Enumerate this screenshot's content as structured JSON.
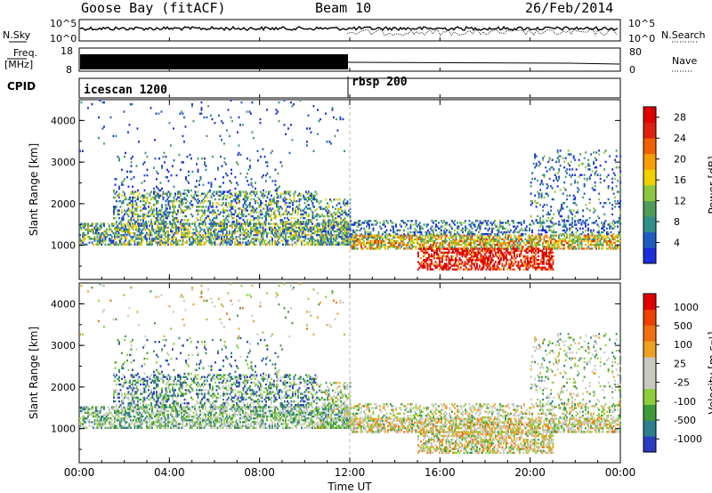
{
  "header": {
    "station": "Goose Bay (fitACF)",
    "beam": "Beam 10",
    "date": "26/Feb/2014"
  },
  "top_panels": {
    "noise_left_label": "N.Sky",
    "noise_right_label": "N.Search",
    "noise_ticks": [
      "10^5",
      "10^0"
    ],
    "freq_label_line1": "Freq.",
    "freq_label_line2": "[MHz]",
    "freq_ticks": [
      "18",
      "8"
    ],
    "nave_label": "Nave",
    "nave_ticks": [
      "80",
      "0"
    ],
    "cpid_label": "CPID",
    "cpid_segments": [
      "icescan 1200",
      "rbsp 200"
    ]
  },
  "chart_data": [
    {
      "type": "heatmap",
      "title": "",
      "xlabel": "Time UT",
      "ylabel": "Slant Range [km]",
      "x_ticks": [
        "00:00",
        "04:00",
        "08:00",
        "12:00",
        "16:00",
        "20:00",
        "00:00"
      ],
      "y_ticks": [
        "1000",
        "2000",
        "3000",
        "4000"
      ],
      "xlim": [
        0,
        24
      ],
      "ylim": [
        180,
        4500
      ],
      "colorbar": {
        "label": "Power [dB]",
        "ticks": [
          "4",
          "8",
          "12",
          "16",
          "20",
          "24",
          "28"
        ],
        "colors": [
          "#1a2edc",
          "#1f5cbf",
          "#2f8f8a",
          "#4f9b5a",
          "#8dc63f",
          "#f0d000",
          "#f5a000",
          "#f06000",
          "#e02010",
          "#e00000"
        ]
      }
    },
    {
      "type": "heatmap",
      "title": "",
      "xlabel": "Time UT",
      "ylabel": "Slant Range [km]",
      "x_ticks": [
        "00:00",
        "04:00",
        "08:00",
        "12:00",
        "16:00",
        "20:00",
        "00:00"
      ],
      "y_ticks": [
        "1000",
        "2000",
        "3000",
        "4000"
      ],
      "xlim": [
        0,
        24
      ],
      "ylim": [
        180,
        4500
      ],
      "colorbar": {
        "label": "Velocity [m s⁻¹]",
        "ticks": [
          "1000",
          "500",
          "100",
          "25",
          "-25",
          "-100",
          "-500",
          "-1000"
        ],
        "colors": [
          "#2a3cc0",
          "#2c7f8c",
          "#3f9a3a",
          "#8ccf3a",
          "#c8c8c0",
          "#c8c8c0",
          "#f0a020",
          "#f07010",
          "#f04000",
          "#e00000"
        ]
      }
    }
  ]
}
